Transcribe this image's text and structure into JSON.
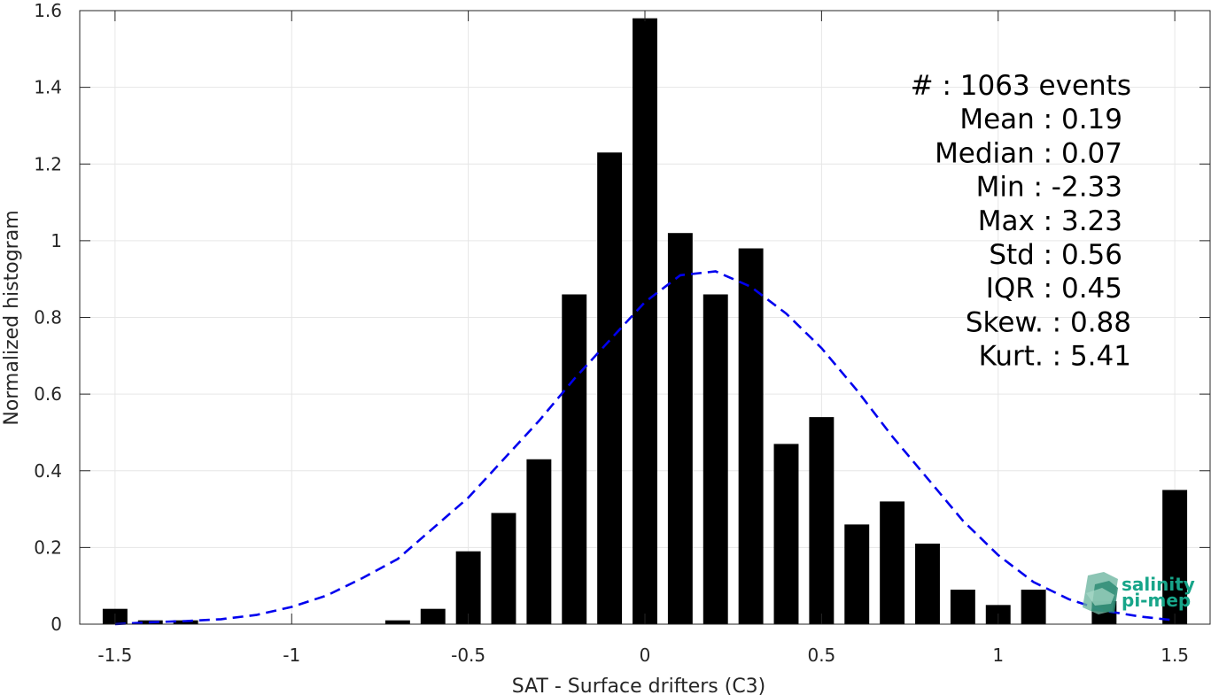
{
  "chart_data": {
    "type": "bar",
    "xlabel": "SAT - Surface drifters (C3)",
    "ylabel": "Normalized histogram",
    "xlim": [
      -1.6,
      1.6
    ],
    "ylim": [
      0,
      1.6
    ],
    "grid": true,
    "bar_color": "#000000",
    "fit_color": "#0000ee",
    "x_ticks": [
      -1.5,
      -1,
      -0.5,
      0,
      0.5,
      1,
      1.5
    ],
    "x_tick_labels": [
      "-1.5",
      "-1",
      "-0.5",
      "0",
      "0.5",
      "1",
      "1.5"
    ],
    "y_ticks": [
      0,
      0.2,
      0.4,
      0.6,
      0.8,
      1,
      1.2,
      1.4,
      1.6
    ],
    "y_tick_labels": [
      "0",
      "0.2",
      "0.4",
      "0.6",
      "0.8",
      "1",
      "1.2",
      "1.4",
      "1.6"
    ],
    "bin_width": 0.1,
    "series": [
      {
        "type": "bar",
        "x": [
          -1.5,
          -1.4,
          -1.3,
          -1.2,
          -1.1,
          -1.0,
          -0.9,
          -0.8,
          -0.7,
          -0.6,
          -0.5,
          -0.4,
          -0.3,
          -0.2,
          -0.1,
          0.0,
          0.1,
          0.2,
          0.3,
          0.4,
          0.5,
          0.6,
          0.7,
          0.8,
          0.9,
          1.0,
          1.1,
          1.2,
          1.3,
          1.5
        ],
        "values": [
          0.04,
          0.01,
          0.01,
          0,
          0,
          0,
          0,
          0,
          0.01,
          0.04,
          0.19,
          0.29,
          0.43,
          0.86,
          1.23,
          1.58,
          1.02,
          0.86,
          0.98,
          0.47,
          0.54,
          0.26,
          0.32,
          0.21,
          0.09,
          0.05,
          0.09,
          0,
          0.06,
          0.35
        ]
      },
      {
        "type": "line",
        "style": "dashed",
        "x": [
          -1.5,
          -1.4,
          -1.3,
          -1.2,
          -1.1,
          -1.0,
          -0.9,
          -0.8,
          -0.7,
          -0.6,
          -0.5,
          -0.4,
          -0.3,
          -0.2,
          -0.1,
          0.0,
          0.1,
          0.2,
          0.3,
          0.4,
          0.5,
          0.6,
          0.7,
          0.8,
          0.9,
          1.0,
          1.1,
          1.2,
          1.3,
          1.4,
          1.5
        ],
        "values": [
          0.0,
          0.005,
          0.008,
          0.013,
          0.024,
          0.045,
          0.075,
          0.12,
          0.17,
          0.25,
          0.33,
          0.43,
          0.53,
          0.64,
          0.74,
          0.84,
          0.91,
          0.92,
          0.88,
          0.81,
          0.72,
          0.61,
          0.49,
          0.38,
          0.27,
          0.18,
          0.11,
          0.065,
          0.035,
          0.02,
          0.01
        ]
      }
    ]
  },
  "stats": {
    "lines": [
      "#  : 1063 events",
      "Mean : 0.19",
      "Median : 0.07",
      "Min : -2.33",
      "Max : 3.23",
      "Std : 0.56",
      "IQR : 0.45",
      "Skew. : 0.88",
      "Kurt. : 5.41"
    ]
  },
  "logo": {
    "line1": "salinity",
    "line2": "pi-mep",
    "color": "#17a589"
  }
}
